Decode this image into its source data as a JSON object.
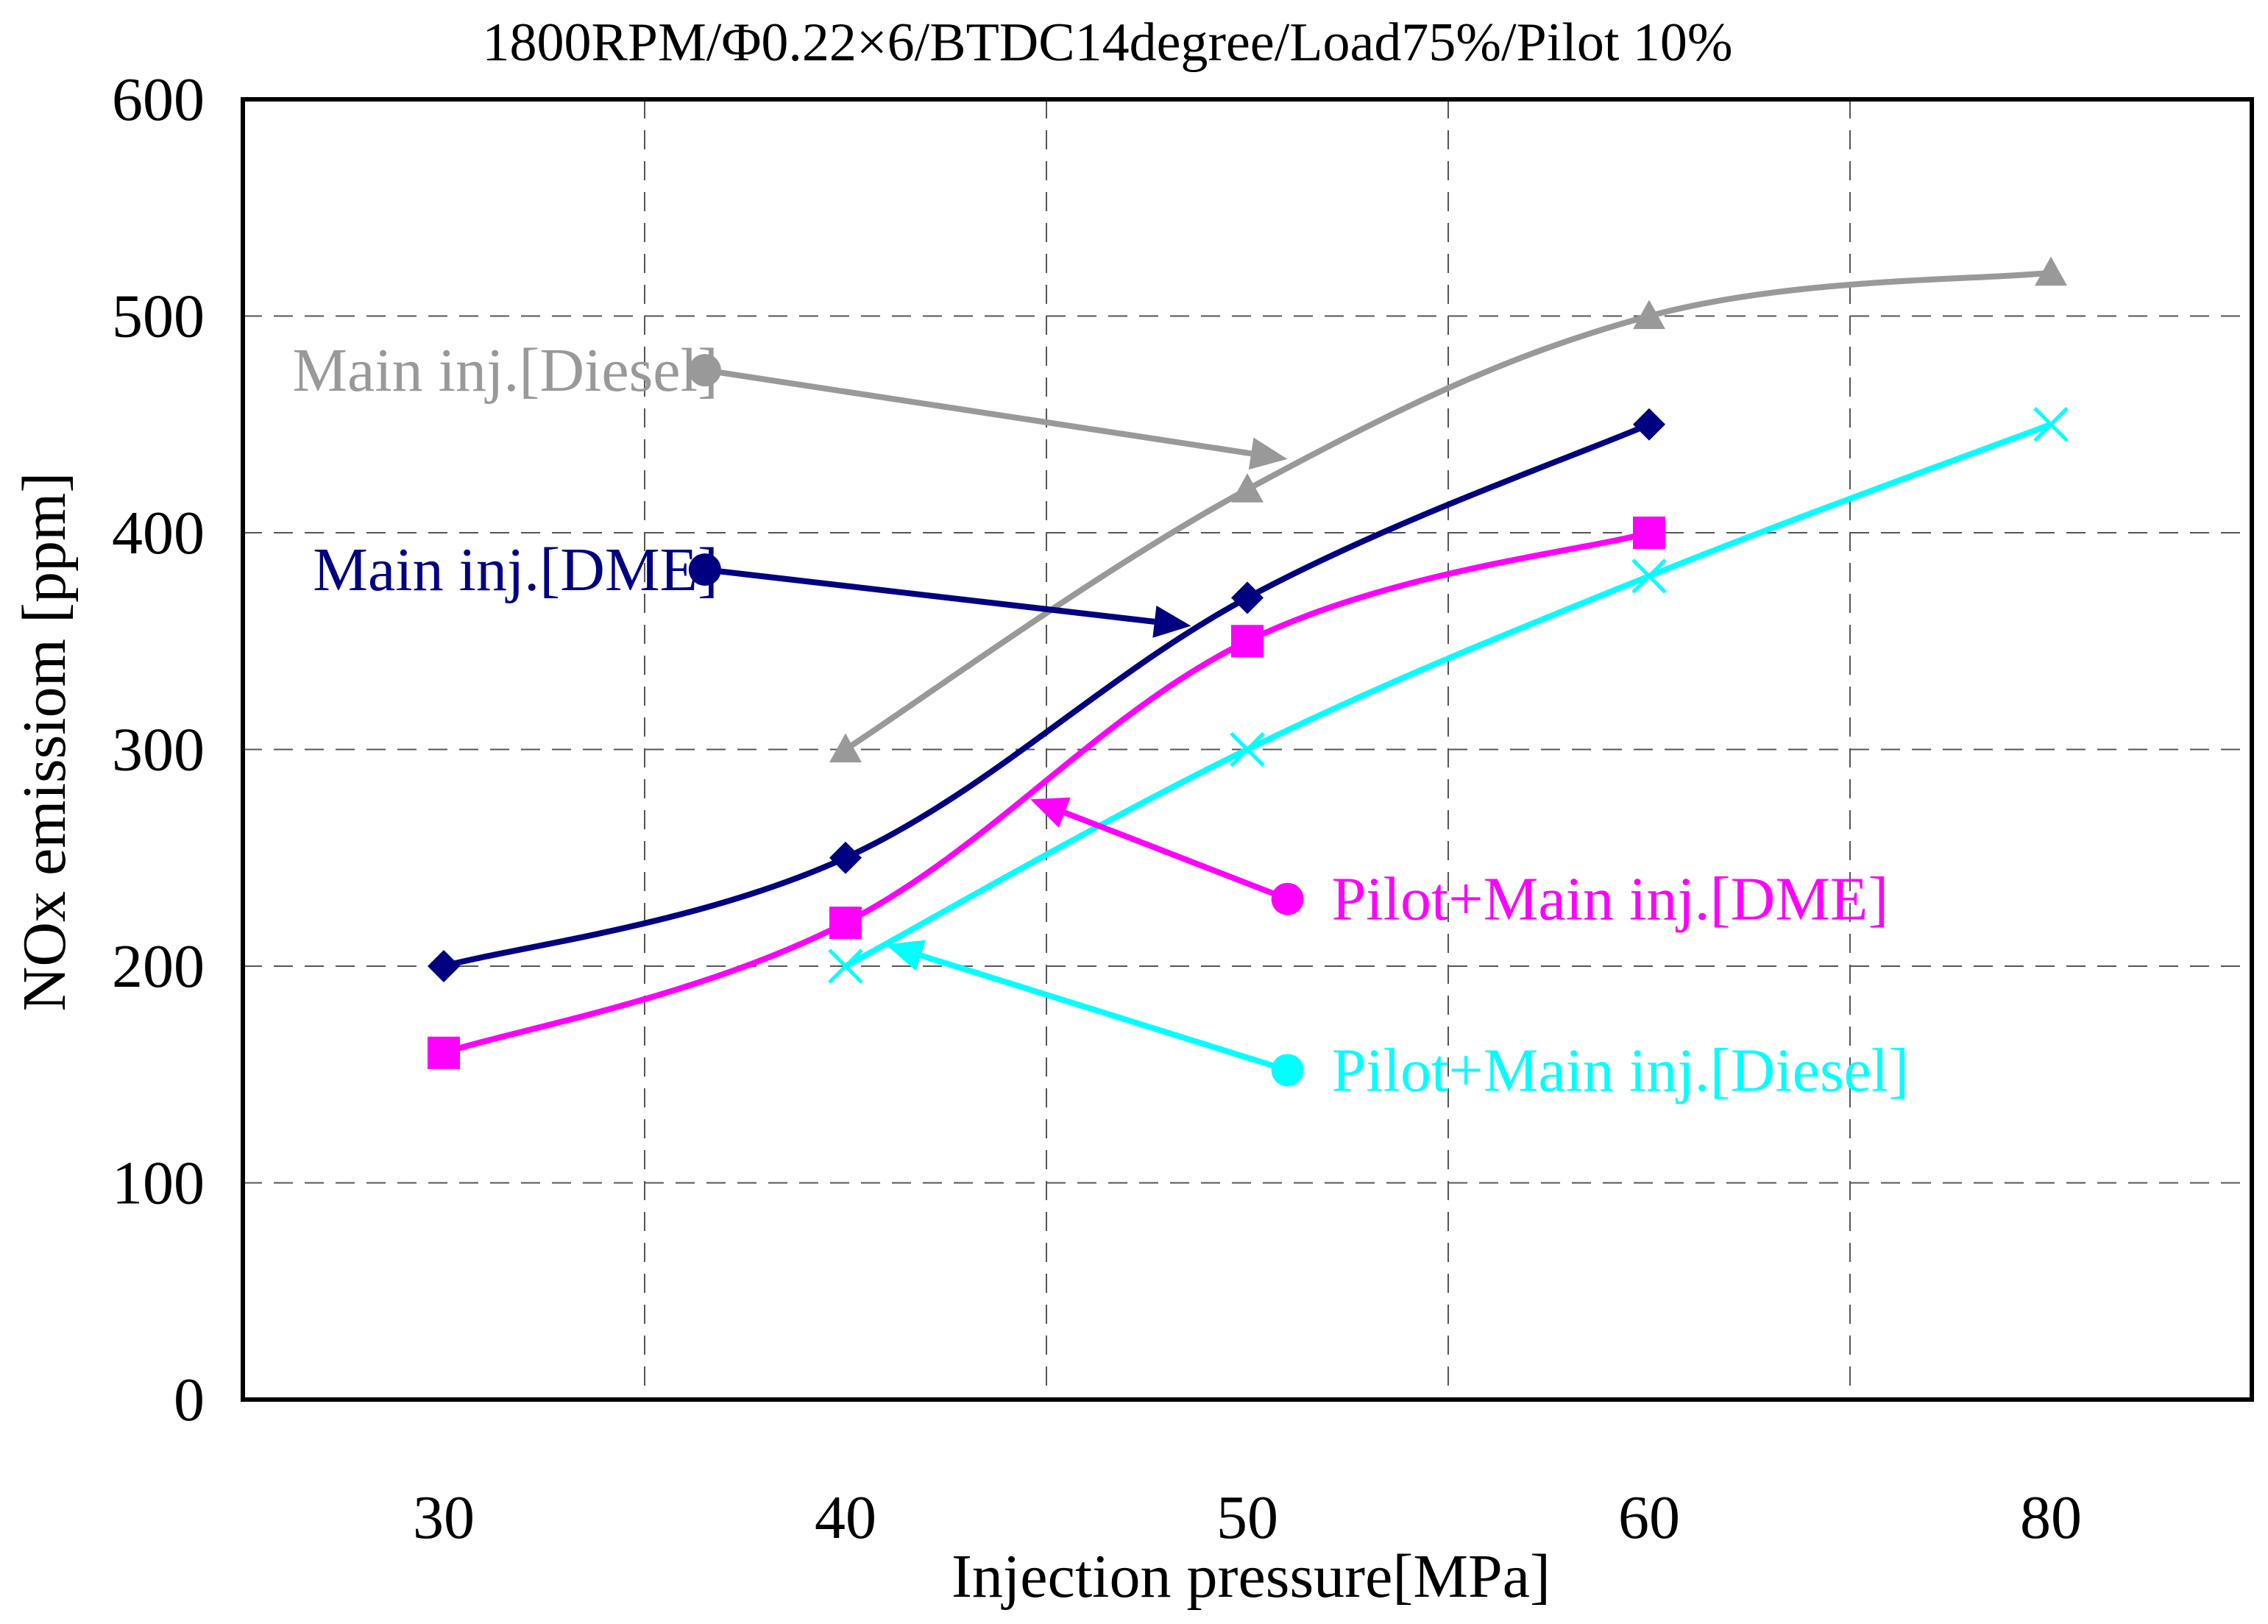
{
  "chart_data": {
    "type": "line",
    "title": "1800RPM/Φ0.22×6/BTDC14degree/Load75%/Pilot 10%",
    "xlabel": "Injection pressure[MPa]",
    "ylabel": "NOx emissiom [ppm]",
    "categories": [
      "30",
      "40",
      "50",
      "60",
      "80"
    ],
    "ylim": [
      0,
      600
    ],
    "yticks": [
      "0",
      "100",
      "200",
      "300",
      "400",
      "500",
      "600"
    ],
    "grid": true,
    "series": [
      {
        "name": "Main inj.[Diesel]",
        "color": "#999999",
        "marker": "triangle",
        "values": [
          null,
          300,
          420,
          500,
          520
        ],
        "annotation": {
          "label_category_index": 0.65,
          "label_value": 475,
          "arrow_to_category_index": 2.1,
          "arrow_to_value": 434
        }
      },
      {
        "name": "Main inj.[DME]",
        "color": "#000080",
        "marker": "diamond",
        "values": [
          200,
          250,
          370,
          450,
          null
        ],
        "annotation": {
          "label_category_index": 0.65,
          "label_value": 383,
          "arrow_to_category_index": 1.86,
          "arrow_to_value": 357
        }
      },
      {
        "name": "Pilot+Main inj.[DME]",
        "color": "#FF00FF",
        "marker": "square",
        "values": [
          160,
          220,
          350,
          400,
          null
        ],
        "annotation": {
          "label_category_index": 2.1,
          "label_value": 231,
          "arrow_to_category_index": 1.46,
          "arrow_to_value": 277
        }
      },
      {
        "name": "Pilot+Main inj.[Diesel]",
        "color": "#00FFFF",
        "marker": "x",
        "values": [
          null,
          200,
          300,
          380,
          450
        ],
        "annotation": {
          "label_category_index": 2.1,
          "label_value": 152,
          "arrow_to_category_index": 1.1,
          "arrow_to_value": 210
        }
      }
    ]
  }
}
